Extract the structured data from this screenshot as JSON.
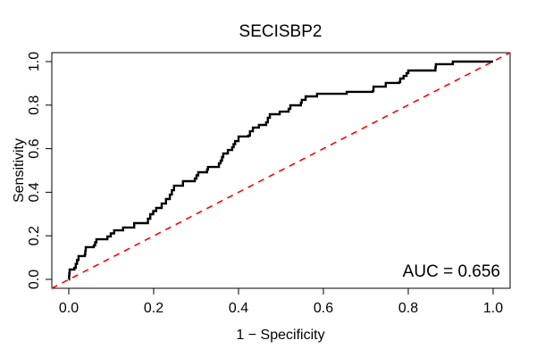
{
  "chart_data": {
    "type": "line",
    "title": "SECISBP2",
    "xlabel": "1 − Specificity",
    "ylabel": "Sensitivity",
    "xlim": [
      0,
      1
    ],
    "ylim": [
      0,
      1
    ],
    "x_ticks": [
      "0.0",
      "0.2",
      "0.4",
      "0.6",
      "0.8",
      "1.0"
    ],
    "y_ticks": [
      "0.0",
      "0.2",
      "0.4",
      "0.6",
      "0.8",
      "1.0"
    ],
    "grid": false,
    "legend": "none",
    "annotation": "AUC = 0.656",
    "auc": 0.656,
    "colors": {
      "roc_curve": "#000000",
      "chance_line": "#ff0000",
      "axis": "#000000"
    },
    "series": [
      {
        "name": "ROC curve",
        "style": "step-solid",
        "points": [
          [
            0,
            0
          ],
          [
            0.002,
            0.045
          ],
          [
            0.013,
            0.053
          ],
          [
            0.023,
            0.107
          ],
          [
            0.038,
            0.115
          ],
          [
            0.04,
            0.148
          ],
          [
            0.059,
            0.156
          ],
          [
            0.065,
            0.184
          ],
          [
            0.091,
            0.197
          ],
          [
            0.107,
            0.225
          ],
          [
            0.128,
            0.238
          ],
          [
            0.154,
            0.258
          ],
          [
            0.181,
            0.258
          ],
          [
            0.192,
            0.299
          ],
          [
            0.206,
            0.328
          ],
          [
            0.219,
            0.348
          ],
          [
            0.229,
            0.369
          ],
          [
            0.238,
            0.389
          ],
          [
            0.248,
            0.43
          ],
          [
            0.269,
            0.451
          ],
          [
            0.297,
            0.463
          ],
          [
            0.305,
            0.492
          ],
          [
            0.326,
            0.504
          ],
          [
            0.328,
            0.516
          ],
          [
            0.354,
            0.533
          ],
          [
            0.358,
            0.545
          ],
          [
            0.364,
            0.578
          ],
          [
            0.375,
            0.594
          ],
          [
            0.385,
            0.607
          ],
          [
            0.392,
            0.635
          ],
          [
            0.4,
            0.656
          ],
          [
            0.423,
            0.66
          ],
          [
            0.427,
            0.68
          ],
          [
            0.434,
            0.697
          ],
          [
            0.448,
            0.709
          ],
          [
            0.465,
            0.721
          ],
          [
            0.469,
            0.742
          ],
          [
            0.474,
            0.758
          ],
          [
            0.495,
            0.758
          ],
          [
            0.497,
            0.77
          ],
          [
            0.518,
            0.783
          ],
          [
            0.522,
            0.799
          ],
          [
            0.547,
            0.811
          ],
          [
            0.549,
            0.824
          ],
          [
            0.558,
            0.84
          ],
          [
            0.581,
            0.84
          ],
          [
            0.585,
            0.852
          ],
          [
            0.653,
            0.852
          ],
          [
            0.655,
            0.861
          ],
          [
            0.716,
            0.865
          ],
          [
            0.718,
            0.885
          ],
          [
            0.743,
            0.885
          ],
          [
            0.747,
            0.902
          ],
          [
            0.779,
            0.906
          ],
          [
            0.781,
            0.922
          ],
          [
            0.789,
            0.934
          ],
          [
            0.796,
            0.947
          ],
          [
            0.8,
            0.959
          ],
          [
            0.863,
            0.959
          ],
          [
            0.865,
            0.988
          ],
          [
            0.901,
            0.988
          ],
          [
            0.905,
            1
          ],
          [
            1,
            1
          ]
        ]
      },
      {
        "name": "chance line",
        "style": "dashed-diagonal",
        "points": [
          [
            0,
            0
          ],
          [
            1,
            1
          ]
        ]
      }
    ]
  }
}
